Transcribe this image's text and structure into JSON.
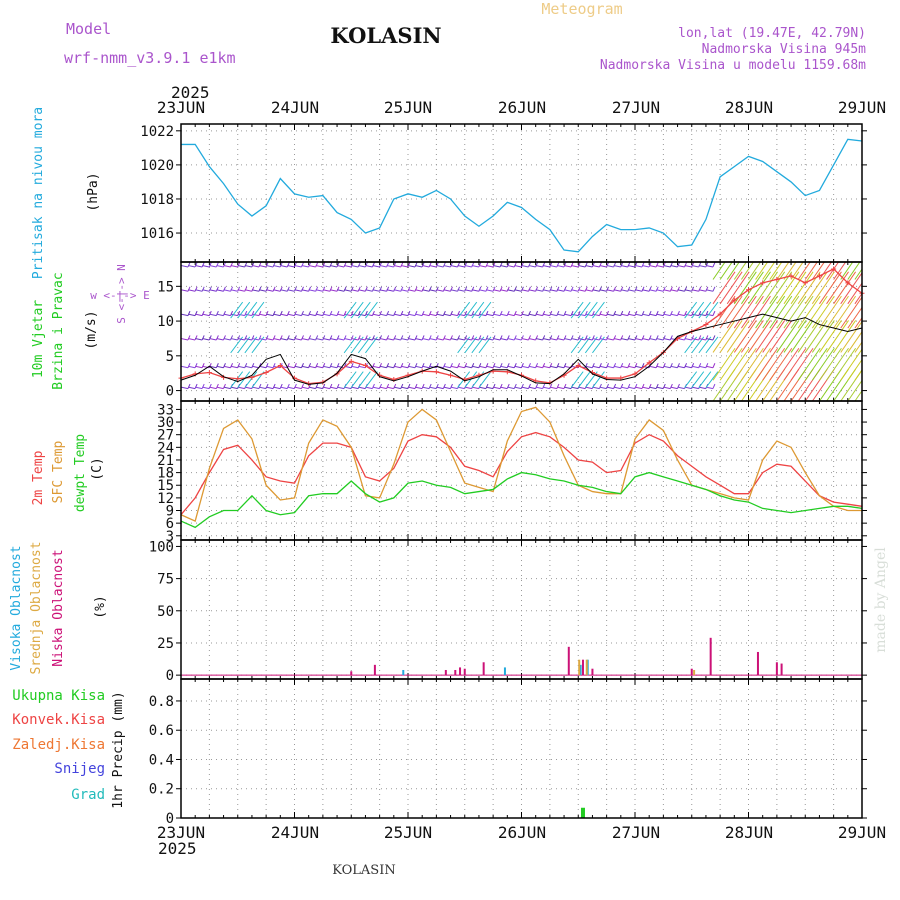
{
  "header": {
    "model_label": "Model",
    "model_name": "wrf-nmm_v3.9.1 e1km",
    "station": "KOLASIN",
    "meteogram_label": "Meteogram",
    "lonlat": "lon,lat (19.47E, 42.79N)",
    "elevation": "Nadmorska Visina 945m",
    "model_elevation": "Nadmorska Visina u modelu 1159.68m",
    "year_top": "2025",
    "year_bottom": "2025",
    "footer_station": "KOLASIN",
    "credit": "made by Angel"
  },
  "x_ticks": [
    "23JUN",
    "24JUN",
    "25JUN",
    "26JUN",
    "27JUN",
    "28JUN",
    "29JUN"
  ],
  "colors": {
    "pressure": "#22aadd",
    "temp2m": "#ee4444",
    "sfc": "#dd9933",
    "dewpt": "#22cc22",
    "wind_speed": "#ee4444",
    "gust": "#000000",
    "high_cloud": "#22aadd",
    "mid_cloud": "#ddaa44",
    "low_cloud": "#cc1177",
    "precip": "#22cc22"
  },
  "chart_data": [
    {
      "type": "line",
      "panel": "pressure",
      "ylabel": "(hPa)",
      "side_labels": [
        "Pritisak na nivou mora"
      ],
      "yticks": [
        1016,
        1018,
        1020,
        1022
      ],
      "ylim": [
        1014.3,
        1022.4
      ],
      "x": [
        0,
        3,
        6,
        9,
        12,
        15,
        18,
        21,
        24,
        27,
        30,
        33,
        36,
        39,
        42,
        45,
        48,
        51,
        54,
        57,
        60,
        63,
        66,
        69,
        72,
        75,
        78,
        81,
        84,
        87,
        90,
        93,
        96,
        99,
        102,
        105,
        108,
        111,
        114,
        117,
        120,
        123,
        126,
        129,
        132,
        135,
        138,
        141,
        144
      ],
      "series": [
        {
          "values": [
            1021.2,
            1021.2,
            1019.9,
            1018.9,
            1017.7,
            1017.0,
            1017.6,
            1019.2,
            1018.3,
            1018.1,
            1018.2,
            1017.2,
            1016.8,
            1016.0,
            1016.3,
            1018.0,
            1018.3,
            1018.1,
            1018.5,
            1018.0,
            1017.0,
            1016.4,
            1017.0,
            1017.8,
            1017.5,
            1016.8,
            1016.2,
            1015.0,
            1014.9,
            1015.8,
            1016.5,
            1016.2,
            1016.2,
            1016.3,
            1016.0,
            1015.2,
            1015.3,
            1016.8,
            1019.3,
            1019.9,
            1020.5,
            1020.2,
            1019.6,
            1019.0,
            1018.2,
            1018.5,
            1020.0,
            1021.5,
            1021.4
          ]
        }
      ]
    },
    {
      "type": "line",
      "panel": "wind",
      "ylabel": "(m/s)",
      "side_labels": [
        "10m Vjetar",
        "Brzina i Pravac"
      ],
      "compass": "w <-|-> E",
      "compass_ns": "S <-|-> N",
      "yticks": [
        0,
        5,
        10,
        15
      ],
      "ylim": [
        -1.5,
        18.5
      ],
      "x": [
        0,
        3,
        6,
        9,
        12,
        15,
        18,
        21,
        24,
        27,
        30,
        33,
        36,
        39,
        42,
        45,
        48,
        51,
        54,
        57,
        60,
        63,
        66,
        69,
        72,
        75,
        78,
        81,
        84,
        87,
        90,
        93,
        96,
        99,
        102,
        105,
        108,
        111,
        114,
        117,
        120,
        123,
        126,
        129,
        132,
        135,
        138,
        141,
        144
      ],
      "series": [
        {
          "name": "speed",
          "values": [
            1.8,
            2.4,
            2.6,
            1.9,
            1.7,
            1.9,
            2.6,
            3.6,
            1.8,
            1.0,
            1.2,
            2.4,
            4.2,
            3.6,
            2.2,
            1.6,
            2.2,
            2.8,
            2.7,
            2.2,
            1.6,
            2.2,
            2.8,
            2.7,
            2.2,
            1.4,
            1.1,
            2.2,
            3.6,
            2.6,
            1.8,
            1.8,
            2.4,
            4.0,
            5.5,
            7.5,
            8.5,
            9.5,
            11.0,
            13.0,
            14.5,
            15.5,
            16.0,
            16.5,
            15.5,
            16.5,
            17.5,
            15.5,
            14.0
          ]
        },
        {
          "name": "gust",
          "values": [
            1.5,
            2.2,
            3.5,
            2.0,
            1.3,
            2.2,
            4.5,
            5.2,
            1.5,
            0.9,
            1.1,
            2.5,
            5.2,
            4.6,
            2.0,
            1.4,
            2.0,
            2.8,
            3.5,
            2.8,
            1.4,
            2.0,
            3.0,
            3.0,
            2.1,
            1.1,
            1.0,
            2.4,
            4.5,
            2.4,
            1.6,
            1.5,
            2.0,
            3.5,
            5.5,
            7.8,
            8.5,
            9.0,
            9.5,
            10.0,
            10.5,
            11.0,
            10.5,
            10.0,
            10.5,
            9.5,
            9.0,
            8.5,
            9.0
          ]
        }
      ]
    },
    {
      "type": "line",
      "panel": "temperature",
      "ylabel": "(C)",
      "side_labels": [
        "2m Temp",
        "SFC Temp",
        "dewpt Temp"
      ],
      "yticks": [
        3,
        6,
        9,
        12,
        15,
        18,
        21,
        24,
        27,
        30,
        33
      ],
      "ylim": [
        2,
        35
      ],
      "x": [
        0,
        3,
        6,
        9,
        12,
        15,
        18,
        21,
        24,
        27,
        30,
        33,
        36,
        39,
        42,
        45,
        48,
        51,
        54,
        57,
        60,
        63,
        66,
        69,
        72,
        75,
        78,
        81,
        84,
        87,
        90,
        93,
        96,
        99,
        102,
        105,
        108,
        111,
        114,
        117,
        120,
        123,
        126,
        129,
        132,
        135,
        138,
        141,
        144
      ],
      "series": [
        {
          "name": "2m Temp",
          "values": [
            8.0,
            12.0,
            18.0,
            23.5,
            24.5,
            21.0,
            17.0,
            16.0,
            15.5,
            22.0,
            25.0,
            25.0,
            24.0,
            17.0,
            16.0,
            19.0,
            25.5,
            27.0,
            26.5,
            24.0,
            19.5,
            18.5,
            17.0,
            23.0,
            26.5,
            27.5,
            26.5,
            24.0,
            21.0,
            20.5,
            18.0,
            18.5,
            25.0,
            27.0,
            25.5,
            22.0,
            19.5,
            17.0,
            15.0,
            13.0,
            13.0,
            18.0,
            20.0,
            19.5,
            16.0,
            12.5,
            11.0,
            10.5,
            10.0
          ]
        },
        {
          "name": "SFC Temp",
          "values": [
            8.0,
            6.5,
            19.0,
            28.5,
            30.5,
            26.0,
            15.0,
            11.5,
            12.0,
            25.0,
            30.5,
            29.0,
            24.0,
            12.5,
            12.0,
            20.0,
            30.0,
            33.0,
            30.5,
            23.0,
            15.5,
            14.5,
            13.5,
            25.5,
            32.5,
            33.5,
            30.0,
            22.0,
            15.0,
            13.5,
            13.0,
            13.0,
            26.0,
            30.5,
            28.0,
            21.0,
            15.0,
            14.0,
            13.0,
            12.0,
            11.5,
            21.0,
            25.5,
            24.0,
            18.0,
            12.5,
            10.0,
            9.0,
            9.0
          ]
        },
        {
          "name": "dewpt Temp",
          "values": [
            6.5,
            5.0,
            7.5,
            9.0,
            9.0,
            12.5,
            9.0,
            8.0,
            8.5,
            12.5,
            13.0,
            13.0,
            16.0,
            13.0,
            11.0,
            12.0,
            15.5,
            16.0,
            15.0,
            14.5,
            13.0,
            13.5,
            14.0,
            16.5,
            18.0,
            17.5,
            16.5,
            16.0,
            15.0,
            14.5,
            13.5,
            13.0,
            17.0,
            18.0,
            17.0,
            16.0,
            15.0,
            14.0,
            12.5,
            11.5,
            11.0,
            9.5,
            9.0,
            8.5,
            9.0,
            9.5,
            10.0,
            10.0,
            9.5
          ]
        }
      ]
    },
    {
      "type": "bar",
      "panel": "clouds",
      "ylabel": "(%)",
      "side_labels": [
        "Visoka Oblacnost",
        "Srednja Oblacnost",
        "Niska Oblacnost"
      ],
      "yticks": [
        0,
        25,
        50,
        75,
        100
      ],
      "ylim": [
        -3,
        105
      ],
      "series": [
        {
          "name": "Visoka Oblacnost",
          "x": [
            47,
            68.5,
            84.5,
            86
          ],
          "values": [
            4,
            6,
            8,
            12
          ]
        },
        {
          "name": "Srednja Oblacnost",
          "x": [
            84.2,
            85.8,
            108.5
          ],
          "values": [
            12,
            12,
            4
          ]
        },
        {
          "name": "Niska Oblacnost",
          "x": [
            36,
            41,
            56,
            58,
            59,
            60,
            64,
            82,
            85,
            87,
            108,
            112,
            122,
            126,
            127
          ],
          "values": [
            3,
            8,
            4,
            4,
            6,
            5,
            10,
            22,
            12,
            5,
            5,
            29,
            18,
            10,
            9
          ]
        }
      ]
    },
    {
      "type": "bar",
      "panel": "precipitation",
      "ylabel": "1hr Precip (mm)",
      "side_labels": [
        "Ukupna Kisa",
        "Konvek.Kisa",
        "Zaledj.Kisa",
        "Snijeg",
        "Grad"
      ],
      "yticks": [
        0,
        0.2,
        0.4,
        0.6,
        0.8
      ],
      "ylim": [
        0,
        0.95
      ],
      "series": [
        {
          "name": "Ukupna Kisa",
          "x": [
            85
          ],
          "values": [
            0.07
          ]
        }
      ]
    }
  ]
}
